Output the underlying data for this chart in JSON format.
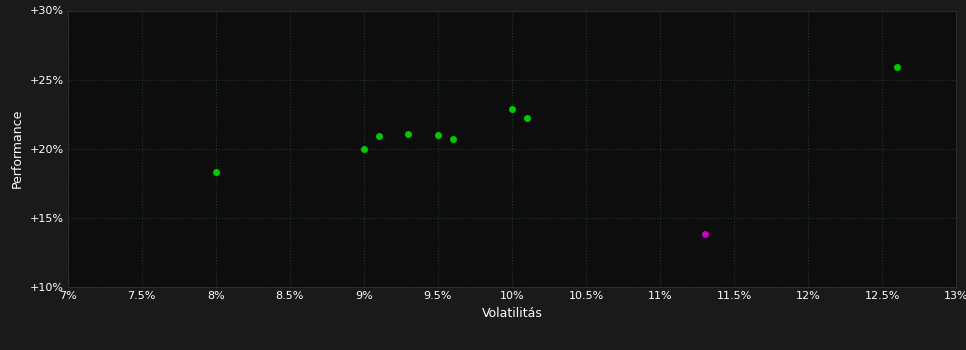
{
  "background_color": "#1a1a1a",
  "plot_bg_color": "#0d0d0d",
  "grid_color": "#1e3a1e",
  "text_color": "#ffffff",
  "xlabel": "Volatilitás",
  "ylabel": "Performance",
  "xlim": [
    0.07,
    0.13
  ],
  "ylim": [
    0.1,
    0.3
  ],
  "xticks": [
    0.07,
    0.075,
    0.08,
    0.085,
    0.09,
    0.095,
    0.1,
    0.105,
    0.11,
    0.115,
    0.12,
    0.125,
    0.13
  ],
  "yticks": [
    0.1,
    0.15,
    0.2,
    0.25,
    0.3
  ],
  "green_points": [
    [
      0.08,
      0.183
    ],
    [
      0.09,
      0.2
    ],
    [
      0.091,
      0.209
    ],
    [
      0.093,
      0.211
    ],
    [
      0.095,
      0.21
    ],
    [
      0.096,
      0.207
    ],
    [
      0.1,
      0.229
    ],
    [
      0.101,
      0.222
    ],
    [
      0.126,
      0.259
    ]
  ],
  "magenta_points": [
    [
      0.113,
      0.138
    ]
  ],
  "green_color": "#00cc00",
  "magenta_color": "#cc00cc",
  "marker_size": 5,
  "label_fontsize": 9,
  "tick_fontsize": 8
}
